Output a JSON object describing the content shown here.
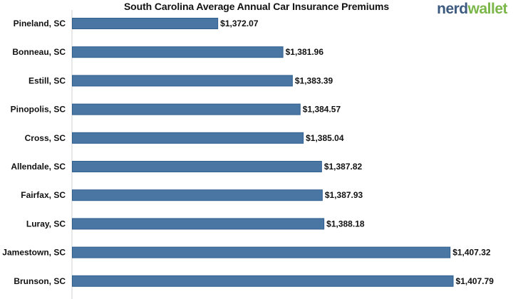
{
  "brand": {
    "part1": "nerd",
    "part2": "wallet",
    "color_primary": "#3d5a80",
    "color_secondary": "#7ab648"
  },
  "chart_data": {
    "type": "bar",
    "orientation": "horizontal",
    "title": "South Carolina Average Annual Car Insurance Premiums",
    "xlabel": "",
    "ylabel": "",
    "categories": [
      "Pineland, SC",
      "Bonneau, SC",
      "Estill, SC",
      "Pinopolis, SC",
      "Cross, SC",
      "Allendale, SC",
      "Fairfax, SC",
      "Luray, SC",
      "Jamestown, SC",
      "Brunson, SC"
    ],
    "values": [
      1372.07,
      1381.96,
      1383.39,
      1384.57,
      1385.04,
      1387.82,
      1387.93,
      1388.18,
      1407.32,
      1407.79
    ],
    "value_labels": [
      "$1,372.07",
      "$1,381.96",
      "$1,383.39",
      "$1,384.57",
      "$1,385.04",
      "$1,387.82",
      "$1,387.93",
      "$1,388.18",
      "$1,407.32",
      "$1,407.79"
    ],
    "xlim": [
      1350,
      1410
    ],
    "grid": false,
    "bar_color": "#4a76a3",
    "bar_edge_color": "#2f5f8f"
  }
}
